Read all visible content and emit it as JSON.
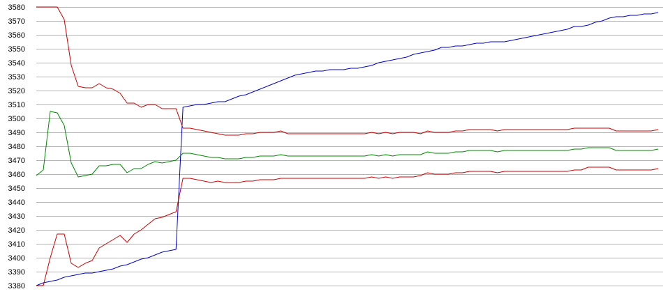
{
  "chart_data": {
    "type": "line",
    "title": "",
    "xlabel": "",
    "ylabel": "",
    "ylim": [
      3380,
      3580
    ],
    "yticks": [
      3380,
      3390,
      3400,
      3410,
      3420,
      3430,
      3440,
      3450,
      3460,
      3470,
      3480,
      3490,
      3500,
      3510,
      3520,
      3530,
      3540,
      3550,
      3560,
      3570,
      3580
    ],
    "xlim": [
      0,
      89
    ],
    "grid": true,
    "legend": "none",
    "x": [
      0,
      1,
      2,
      3,
      4,
      5,
      6,
      7,
      8,
      9,
      10,
      11,
      12,
      13,
      14,
      15,
      16,
      17,
      18,
      19,
      20,
      21,
      22,
      23,
      24,
      25,
      26,
      27,
      28,
      29,
      30,
      31,
      32,
      33,
      34,
      35,
      36,
      37,
      38,
      39,
      40,
      41,
      42,
      43,
      44,
      45,
      46,
      47,
      48,
      49,
      50,
      51,
      52,
      53,
      54,
      55,
      56,
      57,
      58,
      59,
      60,
      61,
      62,
      63,
      64,
      65,
      66,
      67,
      68,
      69,
      70,
      71,
      72,
      73,
      74,
      75,
      76,
      77,
      78,
      79,
      80,
      81,
      82,
      83,
      84,
      85,
      86,
      87,
      88,
      89
    ],
    "series": [
      {
        "color": "#0000cc",
        "values": [
          3380,
          3382,
          3383,
          3384,
          3386,
          3387,
          3388,
          3389,
          3389,
          3390,
          3391,
          3392,
          3394,
          3395,
          3397,
          3399,
          3400,
          3402,
          3404,
          3405,
          3406,
          3508,
          3509,
          3510,
          3510,
          3511,
          3512,
          3512,
          3514,
          3516,
          3517,
          3519,
          3521,
          3523,
          3525,
          3527,
          3529,
          3531,
          3532,
          3533,
          3534,
          3534,
          3535,
          3535,
          3535,
          3536,
          3536,
          3537,
          3538,
          3540,
          3541,
          3542,
          3543,
          3544,
          3546,
          3547,
          3548,
          3549,
          3551,
          3551,
          3552,
          3552,
          3553,
          3554,
          3554,
          3555,
          3555,
          3555,
          3556,
          3557,
          3558,
          3559,
          3560,
          3561,
          3562,
          3563,
          3564,
          3566,
          3566,
          3567,
          3569,
          3570,
          3572,
          3573,
          3573,
          3574,
          3574,
          3575,
          3575,
          3576
        ]
      },
      {
        "color": "#cc0000",
        "values": [
          3580,
          3580,
          3580,
          3580,
          3571,
          3538,
          3523,
          3522,
          3522,
          3525,
          3522,
          3521,
          3518,
          3511,
          3511,
          3508,
          3510,
          3510,
          3507,
          3507,
          3507,
          3493,
          3493,
          3492,
          3491,
          3490,
          3489,
          3488,
          3488,
          3488,
          3489,
          3489,
          3490,
          3490,
          3490,
          3491,
          3489,
          3489,
          3489,
          3489,
          3489,
          3489,
          3489,
          3489,
          3489,
          3489,
          3489,
          3489,
          3490,
          3489,
          3490,
          3489,
          3490,
          3490,
          3490,
          3489,
          3491,
          3490,
          3490,
          3490,
          3491,
          3491,
          3492,
          3492,
          3492,
          3492,
          3491,
          3492,
          3492,
          3492,
          3492,
          3492,
          3492,
          3492,
          3492,
          3492,
          3492,
          3493,
          3493,
          3493,
          3493,
          3493,
          3493,
          3491,
          3491,
          3491,
          3491,
          3491,
          3491,
          3492
        ]
      },
      {
        "color": "#008800",
        "values": [
          3459,
          3463,
          3505,
          3504,
          3495,
          3468,
          3458,
          3459,
          3460,
          3466,
          3466,
          3467,
          3467,
          3461,
          3464,
          3464,
          3467,
          3469,
          3468,
          3469,
          3470,
          3475,
          3475,
          3474,
          3473,
          3472,
          3472,
          3471,
          3471,
          3471,
          3472,
          3472,
          3473,
          3473,
          3473,
          3474,
          3473,
          3473,
          3473,
          3473,
          3473,
          3473,
          3473,
          3473,
          3473,
          3473,
          3473,
          3473,
          3474,
          3473,
          3474,
          3473,
          3474,
          3474,
          3474,
          3474,
          3476,
          3475,
          3475,
          3475,
          3476,
          3476,
          3477,
          3477,
          3477,
          3477,
          3476,
          3477,
          3477,
          3477,
          3477,
          3477,
          3477,
          3477,
          3477,
          3477,
          3477,
          3478,
          3478,
          3479,
          3479,
          3479,
          3479,
          3477,
          3477,
          3477,
          3477,
          3477,
          3477,
          3478
        ]
      },
      {
        "color": "#cc0000",
        "values": [
          3380,
          3380,
          3400,
          3417,
          3417,
          3396,
          3393,
          3396,
          3398,
          3407,
          3410,
          3413,
          3416,
          3411,
          3417,
          3420,
          3424,
          3428,
          3429,
          3431,
          3433,
          3457,
          3457,
          3456,
          3455,
          3454,
          3455,
          3454,
          3454,
          3454,
          3455,
          3455,
          3456,
          3456,
          3456,
          3457,
          3457,
          3457,
          3457,
          3457,
          3457,
          3457,
          3457,
          3457,
          3457,
          3457,
          3457,
          3457,
          3458,
          3457,
          3458,
          3457,
          3458,
          3458,
          3458,
          3459,
          3461,
          3460,
          3460,
          3460,
          3461,
          3461,
          3462,
          3462,
          3462,
          3462,
          3461,
          3462,
          3462,
          3462,
          3462,
          3462,
          3462,
          3462,
          3462,
          3462,
          3462,
          3463,
          3463,
          3465,
          3465,
          3465,
          3465,
          3463,
          3463,
          3463,
          3463,
          3463,
          3463,
          3464
        ]
      }
    ]
  }
}
